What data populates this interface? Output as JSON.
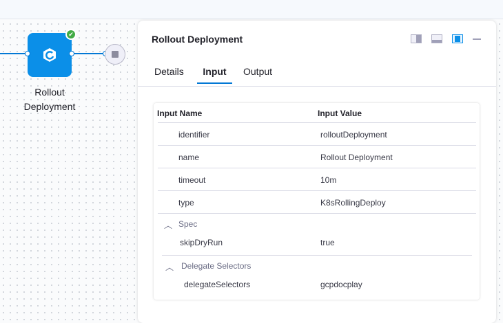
{
  "pipeline": {
    "node_label": "Rollout Deployment",
    "node_status": "success",
    "node_color": "#0b8fe8"
  },
  "panel": {
    "title": "Rollout Deployment",
    "view_icons": [
      "split-right-icon",
      "split-bottom-icon",
      "float-panel-icon",
      "minimize-icon"
    ],
    "tabs": [
      {
        "label": "Details"
      },
      {
        "label": "Input",
        "active": true
      },
      {
        "label": "Output"
      }
    ]
  },
  "table": {
    "headers": [
      "Input Name",
      "Input Value"
    ],
    "rows": [
      {
        "name": "identifier",
        "value": "rolloutDeployment"
      },
      {
        "name": "name",
        "value": "Rollout Deployment"
      },
      {
        "name": "timeout",
        "value": "10m"
      },
      {
        "name": "type",
        "value": "K8sRollingDeploy"
      }
    ],
    "sections": [
      {
        "title": "Spec",
        "rows": [
          {
            "name": "skipDryRun",
            "value": "true"
          }
        ]
      },
      {
        "title": "Delegate Selectors",
        "rows": [
          {
            "name": "delegateSelectors",
            "value": "gcpdocplay"
          }
        ]
      }
    ]
  }
}
